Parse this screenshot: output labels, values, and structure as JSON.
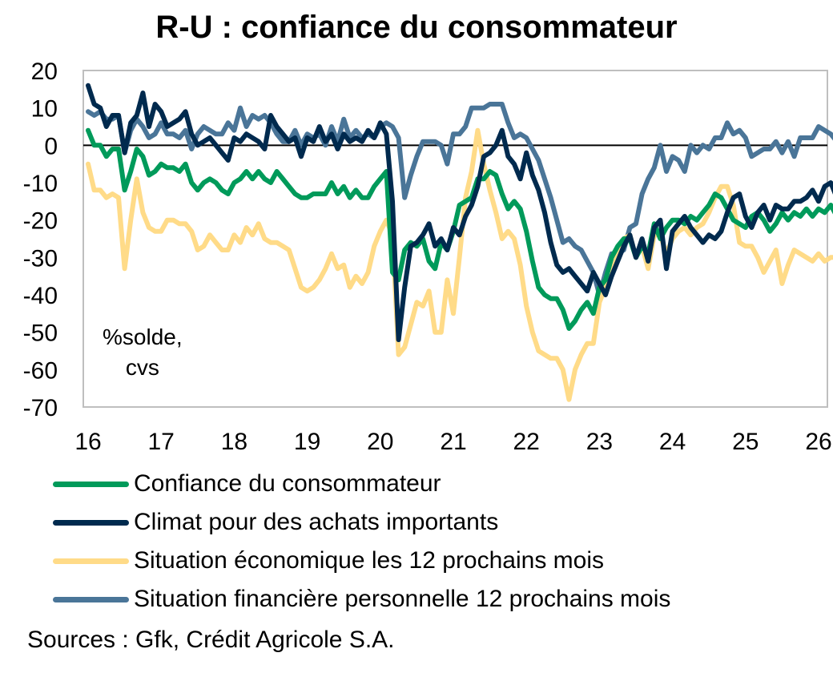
{
  "chart_data": {
    "type": "line",
    "title": "R-U : confiance du consommateur",
    "unit_label_line1": "%solde,",
    "unit_label_line2": "cvs",
    "xlabel": "",
    "ylabel": "",
    "ylim": [
      -70,
      20
    ],
    "y_ticks": [
      20,
      10,
      0,
      -10,
      -20,
      -30,
      -40,
      -50,
      -60,
      -70
    ],
    "x_ticks": [
      "16",
      "17",
      "18",
      "19",
      "20",
      "21",
      "22",
      "23",
      "24",
      "25",
      "26"
    ],
    "x_range": [
      2016,
      2026.25
    ],
    "x_start": 2016.0,
    "x_step_months": 1,
    "zero_line": true,
    "grid": false,
    "legend_position": "bottom",
    "series": [
      {
        "name": "Confiance du consommateur",
        "color": "#009A5A",
        "values": [
          4,
          0,
          0,
          -3,
          -1,
          -1,
          -12,
          -7,
          -1,
          -3,
          -8,
          -7,
          -5,
          -6,
          -6,
          -7,
          -5,
          -10,
          -12,
          -10,
          -9,
          -10,
          -12,
          -13,
          -10,
          -9,
          -7,
          -9,
          -7,
          -9,
          -10,
          -7,
          -9,
          -11,
          -13,
          -14,
          -14,
          -13,
          -13,
          -13,
          -10,
          -13,
          -11,
          -14,
          -12,
          -14,
          -14,
          -11,
          -9,
          -7,
          -34,
          -36,
          -28,
          -26,
          -27,
          -25,
          -31,
          -33,
          -26,
          -28,
          -23,
          -16,
          -15,
          -14,
          -9,
          -9,
          -7,
          -8,
          -13,
          -17,
          -15,
          -17,
          -23,
          -31,
          -38,
          -40,
          -41,
          -41,
          -44,
          -49,
          -47,
          -44,
          -42,
          -45,
          -38,
          -36,
          -30,
          -27,
          -25,
          -25,
          -30,
          -27,
          -29,
          -21,
          -25,
          -22,
          -20,
          -20,
          -21,
          -19,
          -20,
          -18,
          -16,
          -13,
          -14,
          -17,
          -20,
          -21,
          -22,
          -19,
          -18,
          -20,
          -23,
          -21,
          -18,
          -20,
          -18,
          -19,
          -17,
          -19,
          -17,
          -18,
          -16,
          -19,
          -21
        ]
      },
      {
        "name": "Climat pour des achats importants",
        "color": "#002A4E",
        "values": [
          16,
          11,
          10,
          5,
          8,
          8,
          -2,
          6,
          8,
          14,
          5,
          11,
          9,
          5,
          6,
          7,
          9,
          3,
          0,
          1,
          2,
          0,
          -2,
          -4,
          2,
          1,
          3,
          2,
          1,
          -1,
          8,
          5,
          3,
          1,
          2,
          -3,
          2,
          1,
          5,
          1,
          3,
          -1,
          3,
          1,
          2,
          1,
          4,
          2,
          6,
          3,
          -15,
          -52,
          -38,
          -27,
          -26,
          -24,
          -21,
          -27,
          -25,
          -28,
          -22,
          -24,
          -19,
          -16,
          -11,
          -3,
          -2,
          0,
          4,
          -3,
          -5,
          -9,
          -2,
          -8,
          -12,
          -18,
          -26,
          -32,
          -34,
          -33,
          -35,
          -37,
          -39,
          -34,
          -37,
          -40,
          -35,
          -31,
          -27,
          -24,
          -30,
          -25,
          -31,
          -22,
          -20,
          -33,
          -23,
          -21,
          -19,
          -22,
          -24,
          -26,
          -24,
          -25,
          -23,
          -18,
          -14,
          -13,
          -19,
          -22,
          -18,
          -16,
          -20,
          -16,
          -17,
          -17,
          -15,
          -15,
          -14,
          -12,
          -15,
          -11,
          -10,
          -14,
          -18
        ]
      },
      {
        "name": "Situation économique les 12 prochains mois",
        "color": "#FFDB88",
        "values": [
          -5,
          -12,
          -12,
          -14,
          -13,
          -14,
          -33,
          -20,
          -9,
          -18,
          -22,
          -23,
          -23,
          -20,
          -20,
          -21,
          -21,
          -23,
          -28,
          -27,
          -24,
          -26,
          -28,
          -28,
          -24,
          -26,
          -22,
          -24,
          -21,
          -25,
          -26,
          -26,
          -27,
          -28,
          -33,
          -38,
          -39,
          -38,
          -36,
          -33,
          -29,
          -33,
          -32,
          -38,
          -35,
          -37,
          -34,
          -27,
          -23,
          -20,
          -24,
          -56,
          -54,
          -48,
          -42,
          -43,
          -39,
          -50,
          -50,
          -36,
          -45,
          -30,
          -14,
          -7,
          4,
          -5,
          -12,
          -18,
          -25,
          -23,
          -25,
          -32,
          -43,
          -50,
          -55,
          -56,
          -57,
          -57,
          -60,
          -68,
          -60,
          -56,
          -53,
          -53,
          -42,
          -38,
          -33,
          -29,
          -25,
          -24,
          -30,
          -27,
          -33,
          -24,
          -24,
          -29,
          -25,
          -23,
          -22,
          -24,
          -22,
          -21,
          -18,
          -14,
          -11,
          -11,
          -16,
          -26,
          -27,
          -27,
          -30,
          -34,
          -31,
          -28,
          -37,
          -32,
          -28,
          -29,
          -30,
          -31,
          -29,
          -31,
          -30,
          -30,
          -37
        ]
      },
      {
        "name": "Situation financière personnelle 12 prochains mois",
        "color": "#4A7598",
        "values": [
          9,
          8,
          9,
          7,
          7,
          8,
          -2,
          4,
          7,
          5,
          2,
          3,
          6,
          3,
          3,
          2,
          4,
          -1,
          3,
          5,
          4,
          3,
          3,
          6,
          4,
          10,
          5,
          8,
          7,
          8,
          6,
          3,
          1,
          1,
          4,
          0,
          3,
          2,
          3,
          0,
          5,
          1,
          7,
          2,
          4,
          2,
          3,
          2,
          5,
          6,
          5,
          2,
          -14,
          -8,
          -3,
          1,
          1,
          1,
          0,
          -5,
          3,
          3,
          5,
          10,
          10,
          10,
          11,
          11,
          11,
          6,
          2,
          3,
          2,
          -1,
          -4,
          -9,
          -14,
          -20,
          -26,
          -25,
          -27,
          -28,
          -31,
          -34,
          -40,
          -34,
          -29,
          -29,
          -28,
          -22,
          -21,
          -13,
          -9,
          -6,
          0,
          -7,
          -3,
          -4,
          -7,
          0,
          -2,
          0,
          -1,
          2,
          2,
          6,
          3,
          4,
          2,
          -3,
          -2,
          -1,
          -1,
          1,
          -2,
          1,
          -3,
          2,
          2,
          2,
          5,
          4,
          3,
          1,
          2,
          6,
          2,
          1
        ]
      }
    ]
  },
  "legend": {
    "items": [
      {
        "label": "Confiance du consommateur",
        "color": "#009A5A"
      },
      {
        "label": "Climat pour des achats importants",
        "color": "#002A4E"
      },
      {
        "label": "Situation économique les 12 prochains mois",
        "color": "#FFDB88"
      },
      {
        "label": "Situation financière personnelle 12 prochains mois",
        "color": "#4A7598"
      }
    ]
  },
  "source_note": "Sources : Gfk, Crédit Agricole S.A."
}
